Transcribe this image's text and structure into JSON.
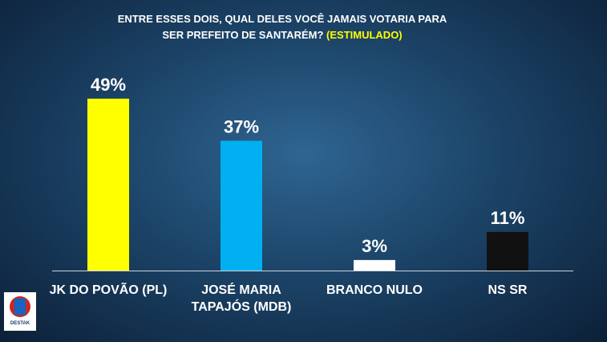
{
  "chart_data": {
    "type": "bar",
    "title": "ENTRE ESSES DOIS, QUAL DELES VOCÊ JAMAIS VOTARIA PARA",
    "subtitle": "SER PREFEITO DE SANTARÉM?",
    "highlight": "(ESTIMULADO)",
    "categories": [
      "JK DO POVÃO (PL)",
      "JOSÉ MARIA TAPAJÓS (MDB)",
      "BRANCO NULO",
      "NS SR"
    ],
    "values": [
      49,
      37,
      3,
      11
    ],
    "value_labels": [
      "49%",
      "37%",
      "3%",
      "11%"
    ],
    "colors": [
      "#ffff00",
      "#00b0f0",
      "#ffffff",
      "#111111"
    ],
    "logo_text": "DESTAK"
  }
}
